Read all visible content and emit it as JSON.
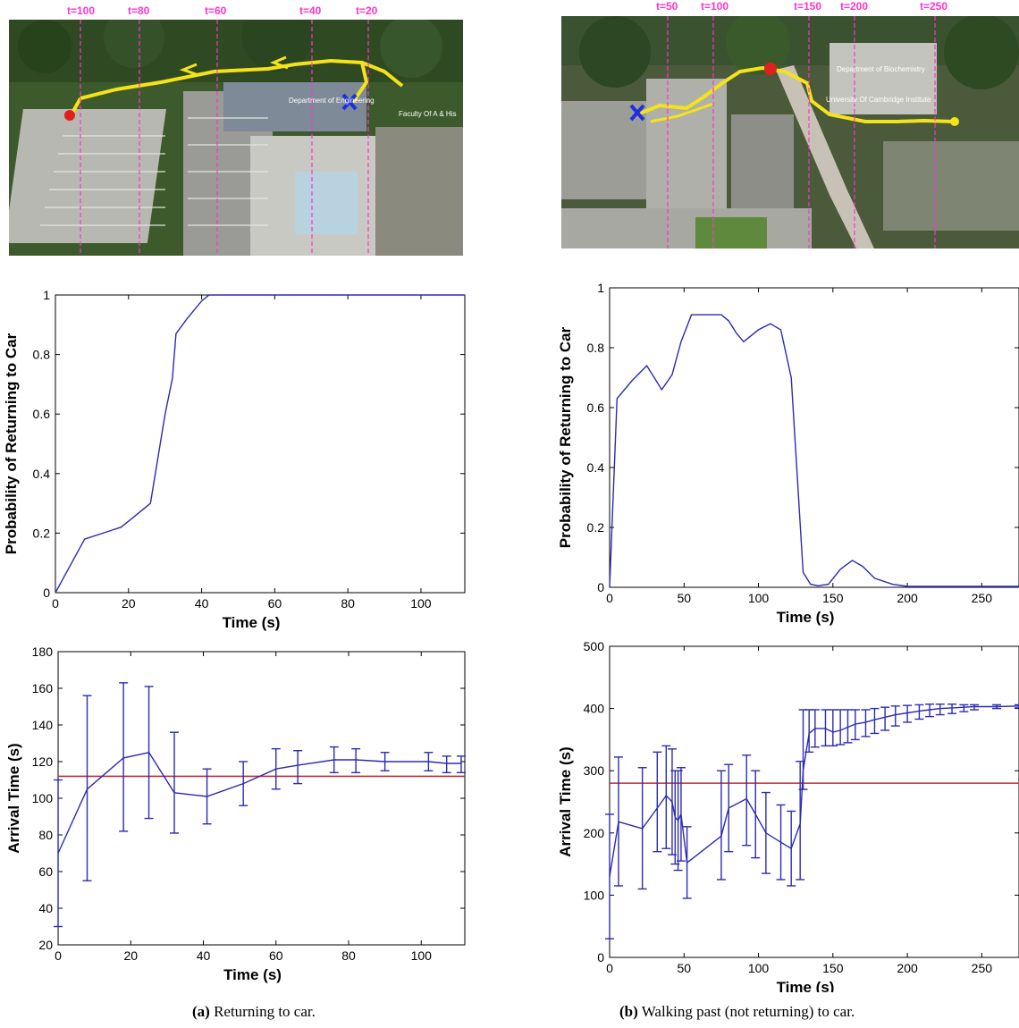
{
  "panel_a": {
    "map": {
      "time_markers": [
        "t=100",
        "t=80",
        "t=60",
        "t=40",
        "t=20"
      ],
      "place_labels": [
        "Department of Engineering",
        "Faculty Of A & His"
      ]
    },
    "caption_tag": "(a)",
    "caption_text": "Returning to car."
  },
  "panel_b": {
    "map": {
      "time_markers": [
        "t=50",
        "t=100",
        "t=150",
        "t=200",
        "t=250"
      ],
      "place_labels": [
        "Department of Biochemistry",
        "University Of Cambridge Institute"
      ]
    },
    "caption_tag": "(b)",
    "caption_text": "Walking past (not returning) to car."
  },
  "colors": {
    "line": "#2b2bb5",
    "reference": "#b5303a",
    "marker": "#ff33cc",
    "path": "#f5e31a",
    "start_dot": "#e0201f",
    "cross": "#1f2fe0"
  },
  "chart_data": [
    {
      "id": "prob_a",
      "type": "line",
      "xlabel": "Time (s)",
      "ylabel": "Probability of Returning to Car",
      "xlim": [
        0,
        112
      ],
      "ylim": [
        0,
        1
      ],
      "xticks": [
        0,
        20,
        40,
        60,
        80,
        100
      ],
      "yticks": [
        0,
        0.2,
        0.4,
        0.6,
        0.8,
        1
      ],
      "ytick_labels": [
        "0",
        "0.2",
        "0.4",
        "0.6",
        "0.8",
        "1"
      ],
      "series": [
        {
          "x": [
            0,
            8,
            18,
            20,
            26,
            28,
            30,
            32,
            33,
            36,
            40,
            42,
            45,
            60,
            112
          ],
          "y": [
            0,
            0.18,
            0.22,
            0.24,
            0.3,
            0.45,
            0.6,
            0.72,
            0.87,
            0.92,
            0.98,
            1.0,
            1.0,
            1.0,
            1.0
          ]
        }
      ]
    },
    {
      "id": "prob_b",
      "type": "line",
      "xlabel": "Time (s)",
      "ylabel": "Probability of Returning to Car",
      "xlim": [
        0,
        275
      ],
      "ylim": [
        0,
        1
      ],
      "xticks": [
        0,
        50,
        100,
        150,
        200,
        250
      ],
      "yticks": [
        0,
        0.2,
        0.4,
        0.6,
        0.8,
        1
      ],
      "ytick_labels": [
        "0",
        "0.2",
        "0.4",
        "0.6",
        "0.8",
        "1"
      ],
      "series": [
        {
          "x": [
            0,
            5,
            15,
            25,
            35,
            42,
            48,
            55,
            65,
            75,
            80,
            85,
            90,
            100,
            108,
            115,
            122,
            130,
            135,
            140,
            147,
            155,
            163,
            170,
            178,
            190,
            200,
            250,
            275
          ],
          "y": [
            0,
            0.63,
            0.69,
            0.74,
            0.66,
            0.71,
            0.82,
            0.91,
            0.91,
            0.91,
            0.89,
            0.85,
            0.82,
            0.86,
            0.88,
            0.86,
            0.7,
            0.05,
            0.01,
            0.005,
            0.01,
            0.06,
            0.09,
            0.07,
            0.03,
            0.01,
            0.003,
            0.003,
            0.003
          ]
        }
      ]
    },
    {
      "id": "arrival_a",
      "type": "line",
      "xlabel": "Time (s)",
      "ylabel": "Arrival Time (s)",
      "xlim": [
        0,
        112
      ],
      "ylim": [
        20,
        180
      ],
      "xticks": [
        0,
        20,
        40,
        60,
        80,
        100
      ],
      "yticks": [
        20,
        40,
        60,
        80,
        100,
        120,
        140,
        160,
        180
      ],
      "ytick_labels": [
        "20",
        "40",
        "60",
        "80",
        "100",
        "120",
        "140",
        "160",
        "180"
      ],
      "reference_line": 112,
      "series": [
        {
          "x": [
            0,
            8,
            18,
            25,
            32,
            41,
            51,
            60,
            66,
            76,
            82,
            90,
            102,
            107,
            111
          ],
          "y": [
            70,
            105,
            122,
            125,
            103,
            101,
            108,
            116,
            118,
            121,
            121,
            120,
            120,
            119,
            119
          ],
          "err_low": [
            30,
            55,
            82,
            89,
            81,
            86,
            96,
            105,
            108,
            114,
            114,
            115,
            115,
            114,
            114
          ],
          "err_high": [
            110,
            156,
            163,
            161,
            136,
            116,
            120,
            127,
            126,
            128,
            127,
            125,
            125,
            123,
            123
          ]
        }
      ]
    },
    {
      "id": "arrival_b",
      "type": "line",
      "xlabel": "Time (s)",
      "ylabel": "Arrival Time (s)",
      "xlim": [
        0,
        275
      ],
      "ylim": [
        0,
        500
      ],
      "xticks": [
        0,
        50,
        100,
        150,
        200,
        250
      ],
      "yticks": [
        0,
        100,
        200,
        300,
        400,
        500
      ],
      "ytick_labels": [
        "0",
        "100",
        "200",
        "300",
        "400",
        "500"
      ],
      "reference_line": 280,
      "series": [
        {
          "x": [
            0,
            6,
            22,
            32,
            38,
            42,
            44,
            46,
            48,
            52,
            75,
            80,
            92,
            98,
            105,
            115,
            122,
            128,
            130,
            134,
            138,
            145,
            150,
            155,
            160,
            165,
            172,
            178,
            185,
            192,
            200,
            208,
            215,
            222,
            230,
            238,
            245,
            260,
            275
          ],
          "y": [
            130,
            218,
            207,
            240,
            260,
            250,
            225,
            220,
            230,
            152,
            195,
            240,
            255,
            230,
            200,
            185,
            175,
            215,
            300,
            360,
            368,
            368,
            362,
            365,
            370,
            375,
            378,
            382,
            386,
            390,
            393,
            396,
            398,
            400,
            401,
            402,
            403,
            403,
            404
          ],
          "err_low": [
            30,
            115,
            110,
            170,
            175,
            165,
            150,
            140,
            155,
            95,
            125,
            170,
            180,
            160,
            135,
            125,
            115,
            125,
            270,
            330,
            338,
            340,
            340,
            342,
            345,
            350,
            355,
            360,
            365,
            372,
            378,
            383,
            387,
            390,
            392,
            395,
            398,
            400,
            401
          ],
          "err_high": [
            230,
            322,
            305,
            330,
            340,
            335,
            300,
            300,
            305,
            210,
            300,
            310,
            325,
            300,
            265,
            245,
            235,
            315,
            398,
            398,
            398,
            398,
            398,
            398,
            398,
            398,
            398,
            400,
            402,
            404,
            405,
            406,
            407,
            407,
            407,
            406,
            406,
            406,
            406
          ]
        }
      ]
    }
  ]
}
